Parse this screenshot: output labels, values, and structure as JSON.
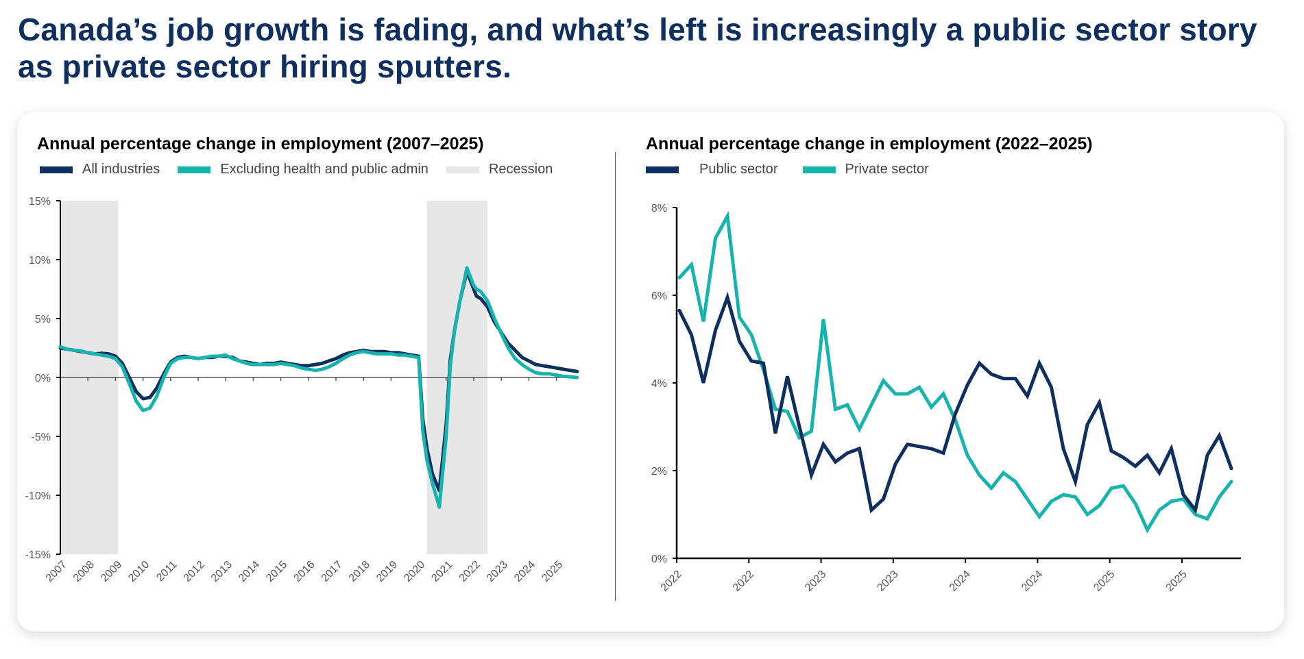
{
  "headline": "Canada’s job growth is fading, and what’s left is increasingly a public sector story as private sector hiring sputters.",
  "colors": {
    "navy": "#0e2f5f",
    "teal": "#17b3ae",
    "recession": "#e8e7e8",
    "headline": "#0e2f5f"
  },
  "chart_data": [
    {
      "type": "line",
      "title": "Annual percentage change in employment (2007–2025)",
      "xlabel": "",
      "ylabel": "",
      "ylim": [
        -15,
        15
      ],
      "xlim": [
        2007,
        2026
      ],
      "yticks": [
        15,
        10,
        5,
        0,
        -5,
        -10,
        -15
      ],
      "ytick_labels": [
        "15%",
        "10%",
        "5%",
        "0%",
        "-5%",
        "-10%",
        "-15%"
      ],
      "xtick_labels": [
        "2007",
        "2008",
        "2009",
        "2010",
        "2011",
        "2012",
        "2013",
        "2014",
        "2015",
        "2016",
        "2017",
        "2018",
        "2019",
        "2020",
        "2021",
        "2022",
        "2023",
        "2024",
        "2025"
      ],
      "legend": [
        "All industries",
        "Excluding health and public admin",
        "Recession"
      ],
      "legend_position": "top-left",
      "recessions": [
        [
          2007.0,
          2009.1
        ],
        [
          2020.3,
          2022.5
        ]
      ],
      "x": [
        2007.0,
        2007.25,
        2007.5,
        2007.75,
        2008.0,
        2008.25,
        2008.5,
        2008.75,
        2009.0,
        2009.25,
        2009.5,
        2009.75,
        2010.0,
        2010.25,
        2010.5,
        2010.75,
        2011.0,
        2011.25,
        2011.5,
        2011.75,
        2012.0,
        2012.25,
        2012.5,
        2012.75,
        2013.0,
        2013.25,
        2013.5,
        2013.75,
        2014.0,
        2014.25,
        2014.5,
        2014.75,
        2015.0,
        2015.25,
        2015.5,
        2015.75,
        2016.0,
        2016.25,
        2016.5,
        2016.75,
        2017.0,
        2017.25,
        2017.5,
        2017.75,
        2018.0,
        2018.25,
        2018.5,
        2018.75,
        2019.0,
        2019.25,
        2019.5,
        2019.75,
        2020.0,
        2020.15,
        2020.3,
        2020.5,
        2020.75,
        2021.0,
        2021.15,
        2021.3,
        2021.5,
        2021.75,
        2022.0,
        2022.1,
        2022.25,
        2022.5,
        2022.75,
        2023.0,
        2023.25,
        2023.5,
        2023.75,
        2024.0,
        2024.25,
        2024.5,
        2024.75,
        2025.0,
        2025.25,
        2025.5,
        2025.75
      ],
      "series": [
        {
          "name": "All industries",
          "color": "#0e2f5f",
          "values": [
            2.5,
            2.4,
            2.3,
            2.2,
            2.1,
            2.0,
            2.05,
            2.0,
            1.8,
            1.2,
            0.0,
            -1.2,
            -1.8,
            -1.7,
            -0.9,
            0.3,
            1.3,
            1.7,
            1.8,
            1.7,
            1.6,
            1.7,
            1.7,
            1.8,
            1.8,
            1.7,
            1.4,
            1.3,
            1.2,
            1.1,
            1.2,
            1.2,
            1.3,
            1.2,
            1.1,
            1.0,
            1.0,
            1.1,
            1.2,
            1.4,
            1.6,
            1.9,
            2.1,
            2.2,
            2.3,
            2.2,
            2.2,
            2.2,
            2.1,
            2.1,
            2.0,
            1.9,
            1.8,
            -3.5,
            -6.0,
            -8.2,
            -9.6,
            -4.0,
            1.5,
            4.0,
            6.5,
            9.0,
            7.5,
            6.9,
            6.7,
            6.0,
            4.7,
            3.8,
            2.9,
            2.3,
            1.7,
            1.4,
            1.1,
            1.0,
            0.9,
            0.8,
            0.7,
            0.6,
            0.5
          ]
        },
        {
          "name": "Excluding health and public admin",
          "color": "#17b3ae",
          "values": [
            2.6,
            2.4,
            2.3,
            2.25,
            2.1,
            2.0,
            1.9,
            1.8,
            1.6,
            0.9,
            -0.5,
            -2.0,
            -2.8,
            -2.6,
            -1.6,
            0.0,
            1.2,
            1.6,
            1.7,
            1.7,
            1.6,
            1.7,
            1.8,
            1.8,
            1.9,
            1.6,
            1.4,
            1.2,
            1.1,
            1.1,
            1.1,
            1.1,
            1.2,
            1.1,
            1.0,
            0.8,
            0.7,
            0.6,
            0.7,
            0.9,
            1.2,
            1.6,
            1.9,
            2.1,
            2.2,
            2.1,
            2.0,
            2.0,
            2.0,
            1.9,
            1.9,
            1.8,
            1.7,
            -4.5,
            -7.0,
            -9.0,
            -11.0,
            -5.0,
            1.0,
            4.0,
            6.5,
            9.3,
            7.8,
            7.5,
            7.3,
            6.5,
            5.0,
            3.7,
            2.5,
            1.6,
            1.1,
            0.7,
            0.4,
            0.3,
            0.3,
            0.2,
            0.1,
            0.05,
            0.0
          ]
        }
      ]
    },
    {
      "type": "line",
      "title": "Annual percentage change in employment (2022–2025)",
      "xlabel": "",
      "ylabel": "",
      "ylim": [
        0,
        8
      ],
      "yticks": [
        8,
        6,
        4,
        2,
        0
      ],
      "ytick_labels": [
        "8%",
        "6%",
        "4%",
        "2%",
        "0%"
      ],
      "xtick_labels": [
        "2022",
        "2022",
        "2023",
        "2023",
        "2024",
        "2024",
        "2025",
        "2025"
      ],
      "legend": [
        "Public sector",
        "Private sector"
      ],
      "legend_position": "top-left",
      "series": [
        {
          "name": "Public sector",
          "color": "#0e2f5f",
          "values": [
            5.65,
            5.1,
            4.0,
            5.2,
            5.95,
            4.95,
            4.5,
            4.45,
            2.85,
            4.15,
            3.0,
            1.9,
            2.6,
            2.2,
            2.4,
            2.5,
            1.1,
            1.35,
            2.15,
            2.6,
            2.55,
            2.5,
            2.4,
            3.3,
            3.95,
            4.45,
            4.2,
            4.1,
            4.1,
            3.7,
            4.45,
            3.9,
            2.5,
            1.75,
            3.05,
            3.55,
            2.45,
            2.3,
            2.1,
            2.35,
            1.95,
            2.5,
            1.45,
            1.1,
            2.35,
            2.8,
            2.05
          ]
        },
        {
          "name": "Private sector",
          "color": "#17b3ae",
          "values": [
            6.4,
            6.7,
            5.4,
            7.3,
            7.8,
            5.5,
            5.1,
            4.3,
            3.4,
            3.35,
            2.75,
            2.9,
            5.45,
            3.4,
            3.5,
            2.95,
            3.5,
            4.05,
            3.75,
            3.75,
            3.9,
            3.45,
            3.75,
            3.15,
            2.35,
            1.9,
            1.6,
            1.95,
            1.75,
            1.35,
            0.95,
            1.3,
            1.45,
            1.4,
            1.0,
            1.2,
            1.6,
            1.65,
            1.25,
            0.65,
            1.1,
            1.3,
            1.35,
            1.0,
            0.9,
            1.4,
            1.75
          ]
        }
      ]
    }
  ]
}
